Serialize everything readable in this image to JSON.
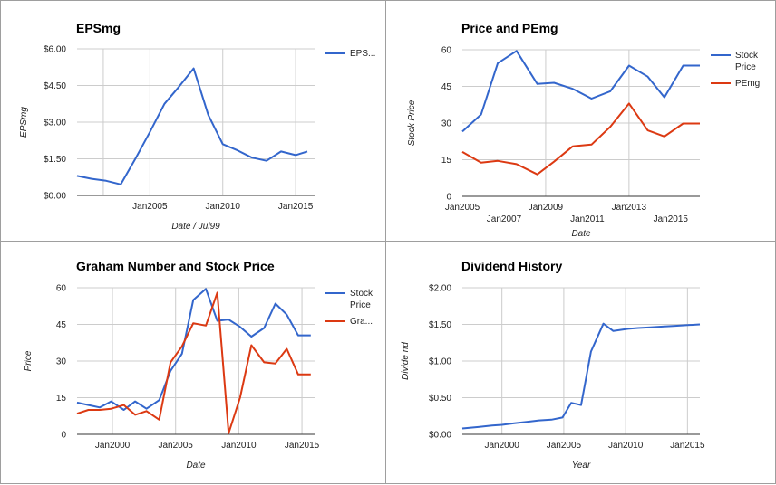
{
  "colors": {
    "blue": "#3366cc",
    "red": "#dc3912",
    "grid": "#cccccc"
  },
  "chart_data": [
    {
      "type": "line",
      "title": "EPSmg",
      "xlabel": "Date / Jul99",
      "ylabel": "EPSmg",
      "xlim": [
        2000.0,
        2016.3
      ],
      "ylim": [
        0,
        6
      ],
      "yticks": [
        {
          "v": 0,
          "label": "$0.00"
        },
        {
          "v": 1.5,
          "label": "$1.50"
        },
        {
          "v": 3,
          "label": "$3.00"
        },
        {
          "v": 4.5,
          "label": "$4.50"
        },
        {
          "v": 6,
          "label": "$6.00"
        }
      ],
      "xticks": [
        {
          "v": 2005,
          "label": "Jan2005"
        },
        {
          "v": 2010,
          "label": "Jan2010"
        },
        {
          "v": 2015,
          "label": "Jan2015"
        }
      ],
      "xgrid": [
        2001.8,
        2005,
        2010,
        2015
      ],
      "legend_position": "right",
      "series": [
        {
          "name": "EPS...",
          "color": "#3366cc",
          "x": [
            2000.0,
            2001.0,
            2002.0,
            2003.0,
            2004.0,
            2005.0,
            2006.0,
            2007.0,
            2008.0,
            2009.0,
            2010.0,
            2011.0,
            2012.0,
            2013.0,
            2014.0,
            2015.0,
            2015.8
          ],
          "y": [
            0.8,
            0.68,
            0.6,
            0.45,
            1.5,
            2.6,
            3.75,
            4.45,
            5.2,
            3.3,
            2.1,
            1.85,
            1.55,
            1.42,
            1.8,
            1.65,
            1.8
          ]
        }
      ]
    },
    {
      "type": "line",
      "title": "Price and PEmg",
      "xlabel": "Date",
      "ylabel": "Stock Price",
      "xlim": [
        2005.0,
        2016.4
      ],
      "ylim": [
        0,
        60
      ],
      "yticks": [
        {
          "v": 0,
          "label": "0"
        },
        {
          "v": 15,
          "label": "15"
        },
        {
          "v": 30,
          "label": "30"
        },
        {
          "v": 45,
          "label": "45"
        },
        {
          "v": 60,
          "label": "60"
        }
      ],
      "xticks": [
        {
          "v": 2005,
          "label": "Jan2005",
          "row": 0
        },
        {
          "v": 2007,
          "label": "Jan2007",
          "row": 1
        },
        {
          "v": 2009,
          "label": "Jan2009",
          "row": 0
        },
        {
          "v": 2011,
          "label": "Jan2011",
          "row": 1
        },
        {
          "v": 2013,
          "label": "Jan2013",
          "row": 0
        },
        {
          "v": 2015,
          "label": "Jan2015",
          "row": 1
        }
      ],
      "xgrid": [
        2009,
        2013
      ],
      "legend_position": "right",
      "series": [
        {
          "name": "Stock Price",
          "color": "#3366cc",
          "x": [
            2005.0,
            2005.9,
            2006.7,
            2007.6,
            2008.6,
            2009.4,
            2010.3,
            2011.2,
            2012.1,
            2013.0,
            2013.9,
            2014.7,
            2015.6,
            2016.4
          ],
          "y": [
            26.5,
            33.5,
            54.5,
            59.5,
            46,
            46.5,
            44,
            40,
            43,
            53.5,
            49,
            40.5,
            53.5,
            53.5
          ]
        },
        {
          "name": "PEmg",
          "color": "#dc3912",
          "x": [
            2005.0,
            2005.9,
            2006.7,
            2007.6,
            2008.6,
            2009.4,
            2010.3,
            2011.2,
            2012.1,
            2013.0,
            2013.9,
            2014.7,
            2015.6,
            2016.4
          ],
          "y": [
            18.2,
            13.8,
            14.5,
            13.2,
            9,
            14.2,
            20.5,
            21.2,
            28.5,
            38,
            27,
            24.5,
            29.8,
            29.8
          ]
        }
      ]
    },
    {
      "type": "line",
      "title": "Graham Number and Stock Price",
      "xlabel": "Date",
      "ylabel": "Price",
      "xlim": [
        1997.2,
        2016.0
      ],
      "ylim": [
        0,
        60
      ],
      "yticks": [
        {
          "v": 0,
          "label": "0"
        },
        {
          "v": 15,
          "label": "15"
        },
        {
          "v": 30,
          "label": "30"
        },
        {
          "v": 45,
          "label": "45"
        },
        {
          "v": 60,
          "label": "60"
        }
      ],
      "xticks": [
        {
          "v": 2000,
          "label": "Jan2000"
        },
        {
          "v": 2005,
          "label": "Jan2005"
        },
        {
          "v": 2010,
          "label": "Jan2010"
        },
        {
          "v": 2015,
          "label": "Jan2015"
        }
      ],
      "xgrid": [
        2000,
        2005,
        2010,
        2015
      ],
      "legend_position": "right",
      "series": [
        {
          "name": "Stock Price",
          "color": "#3366cc",
          "x": [
            1997.2,
            1998.1,
            1999.0,
            1999.9,
            2000.9,
            2001.8,
            2002.7,
            2003.7,
            2004.6,
            2005.5,
            2006.4,
            2007.4,
            2008.3,
            2009.2,
            2010.1,
            2011.0,
            2012.0,
            2012.9,
            2013.8,
            2014.7,
            2015.7
          ],
          "y": [
            13,
            12,
            11,
            13.5,
            10,
            13.5,
            10.5,
            14,
            26,
            33,
            55,
            59.5,
            46.5,
            47,
            44,
            40,
            43.5,
            53.5,
            49,
            40.5,
            40.5
          ]
        },
        {
          "name": "Gra...",
          "color": "#dc3912",
          "x": [
            1997.2,
            1998.1,
            1999.0,
            1999.9,
            2000.9,
            2001.8,
            2002.7,
            2003.7,
            2004.6,
            2005.5,
            2006.4,
            2007.4,
            2008.3,
            2009.2,
            2010.1,
            2011.0,
            2012.0,
            2012.9,
            2013.8,
            2014.7,
            2015.7
          ],
          "y": [
            8.5,
            10,
            10,
            10.5,
            12,
            8,
            9.5,
            6,
            29.5,
            36,
            45.5,
            44.5,
            58,
            0.5,
            15,
            36.5,
            29.5,
            29,
            35,
            24.5,
            24.5
          ]
        }
      ]
    },
    {
      "type": "line",
      "title": "Dividend History",
      "xlabel": "Year",
      "ylabel": "Divide nd",
      "xlim": [
        1996.8,
        2016.0
      ],
      "ylim": [
        0,
        2
      ],
      "yticks": [
        {
          "v": 0,
          "label": "$0.00"
        },
        {
          "v": 0.5,
          "label": "$0.50"
        },
        {
          "v": 1,
          "label": "$1.00"
        },
        {
          "v": 1.5,
          "label": "$1.50"
        },
        {
          "v": 2,
          "label": "$2.00"
        }
      ],
      "xticks": [
        {
          "v": 2000,
          "label": "Jan2000"
        },
        {
          "v": 2005,
          "label": "Jan2005"
        },
        {
          "v": 2010,
          "label": "Jan2010"
        },
        {
          "v": 2015,
          "label": "Jan2015"
        }
      ],
      "xgrid": [
        2000,
        2005,
        2010,
        2015
      ],
      "legend_position": "none",
      "series": [
        {
          "name": "",
          "color": "#3366cc",
          "x": [
            1996.8,
            1998.1,
            1999.2,
            2000.0,
            2001.0,
            2002.0,
            2003.0,
            2004.0,
            2004.9,
            2005.6,
            2006.4,
            2007.2,
            2008.2,
            2009.0,
            2010.2,
            2011.0,
            2012.0,
            2013.0,
            2014.0,
            2015.0,
            2016.0
          ],
          "y": [
            0.08,
            0.1,
            0.12,
            0.13,
            0.15,
            0.17,
            0.19,
            0.2,
            0.23,
            0.43,
            0.4,
            1.13,
            1.51,
            1.41,
            1.44,
            1.45,
            1.46,
            1.47,
            1.48,
            1.49,
            1.5
          ]
        }
      ]
    }
  ]
}
